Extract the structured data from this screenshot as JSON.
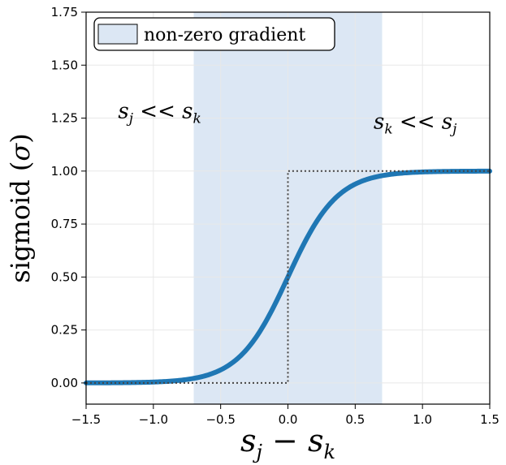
{
  "chart_data": {
    "type": "line",
    "xlabel": "s_j − s_k",
    "ylabel": "sigmoid (σ)",
    "xlim": [
      -1.5,
      1.5
    ],
    "ylim": [
      -0.1,
      1.75
    ],
    "x_ticks": [
      "−1.5",
      "−1.0",
      "−0.5",
      "0.0",
      "0.5",
      "1.0",
      "1.5"
    ],
    "y_ticks": [
      "0.00",
      "0.25",
      "0.50",
      "0.75",
      "1.00",
      "1.25",
      "1.50",
      "1.75"
    ],
    "grid": true,
    "shaded_region": {
      "label": "non-zero gradient",
      "x_range": [
        -0.7,
        0.7
      ],
      "color": "#dce7f4"
    },
    "series": [
      {
        "style": "solid",
        "color": "#1f77b4",
        "x": [
          -1.5,
          -1.25,
          -1.0,
          -0.75,
          -0.5,
          -0.4,
          -0.3,
          -0.2,
          -0.1,
          0.0,
          0.1,
          0.2,
          0.3,
          0.4,
          0.5,
          0.75,
          1.0,
          1.25,
          1.5
        ],
        "values": [
          0.0,
          0.0,
          0.0,
          0.0,
          0.03,
          0.06,
          0.12,
          0.23,
          0.38,
          0.5,
          0.62,
          0.77,
          0.88,
          0.94,
          0.97,
          0.99,
          1.0,
          1.0,
          1.0
        ]
      },
      {
        "style": "dotted",
        "color": "#444444",
        "x": [
          -1.5,
          0.0,
          0.0,
          1.5
        ],
        "values": [
          0.0,
          0.0,
          1.0,
          1.0
        ]
      }
    ],
    "annotations": [
      {
        "text": "s_j << s_k",
        "x": -0.9,
        "y": 1.25
      },
      {
        "text": "s_k << s_j",
        "x": 1.15,
        "y": 1.2
      }
    ],
    "legend": {
      "position": "top-left",
      "entries": [
        "non-zero gradient"
      ]
    }
  }
}
